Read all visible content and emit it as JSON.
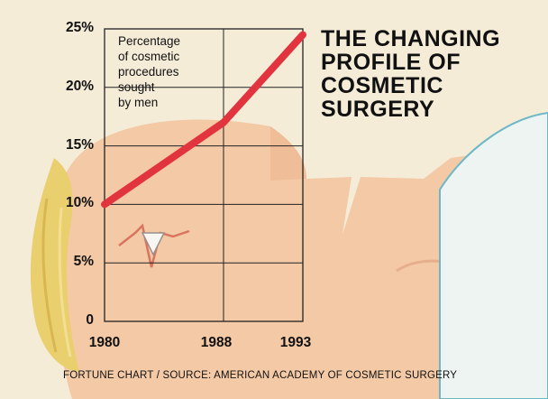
{
  "title": "THE CHANGING\nPROFILE OF\nCOSMETIC\nSURGERY",
  "source": "FORTUNE CHART / SOURCE: AMERICAN ACADEMY OF COSMETIC SURGERY",
  "colors": {
    "line": "#e2343f",
    "skin": "#f4c9a6",
    "background": "#f5ecd8",
    "gown": "#eef4f2",
    "hair": "#e9cf6e"
  },
  "chart_data": {
    "type": "line",
    "annotation": "Percentage\nof cosmetic\nprocedures\nsought\nby men",
    "x": [
      1980,
      1988,
      1993
    ],
    "series": [
      {
        "values": [
          10,
          17,
          24.5
        ]
      }
    ],
    "ylim": [
      0,
      25
    ],
    "yticks": [
      "0",
      "5%",
      "10%",
      "15%",
      "20%",
      "25%"
    ],
    "xticks": [
      "1980",
      "1988",
      "1993"
    ],
    "grid": true
  }
}
